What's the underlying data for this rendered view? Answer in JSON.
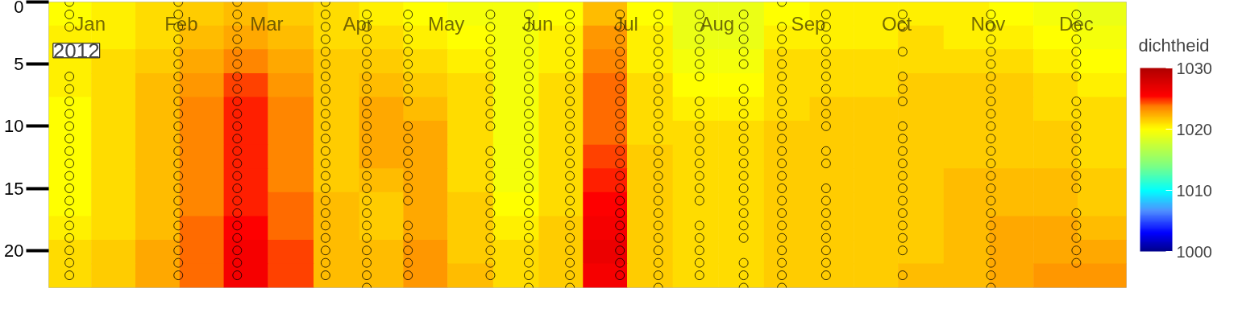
{
  "chart_data": {
    "type": "heatmap",
    "x": [
      "2012-01-08",
      "2012-01-23",
      "2012-02-07",
      "2012-02-22",
      "2012-03-08",
      "2012-03-23",
      "2012-04-08",
      "2012-04-23",
      "2012-05-08",
      "2012-05-23",
      "2012-06-08",
      "2012-06-23",
      "2012-07-08",
      "2012-07-23",
      "2012-08-08",
      "2012-08-23",
      "2012-09-08",
      "2012-09-23",
      "2012-10-08",
      "2012-10-23",
      "2012-11-08",
      "2012-11-23",
      "2012-12-08",
      "2012-12-23"
    ],
    "cells": [
      [
        1020,
        1020.5,
        1021,
        1021.5,
        1022,
        1021.5,
        1021,
        1020.5,
        1020,
        1019.5,
        1019.5,
        1020,
        1022,
        1020,
        1019,
        1019,
        1020,
        1020.5,
        1020.5,
        1020.5,
        1020.5,
        1020,
        1019.5,
        1019
      ],
      [
        1020.5,
        1020.5,
        1021,
        1022,
        1022.5,
        1022,
        1021,
        1021,
        1020.5,
        1020,
        1019.5,
        1020.5,
        1023,
        1020.5,
        1019,
        1019,
        1020.5,
        1020.5,
        1020.5,
        1021,
        1020.5,
        1020.5,
        1020,
        1019.5
      ],
      [
        1020.5,
        1021,
        1021.5,
        1022.5,
        1023.5,
        1022.5,
        1021.5,
        1021.5,
        1021,
        1020.5,
        1019.5,
        1020.5,
        1023.5,
        1020.5,
        1019.5,
        1019.5,
        1021,
        1021,
        1021,
        1021,
        1021,
        1021,
        1020.5,
        1020
      ],
      [
        1020.5,
        1021,
        1022,
        1023,
        1024.5,
        1023,
        1021.5,
        1022,
        1021.5,
        1021,
        1019.5,
        1021,
        1024,
        1021,
        1020,
        1020,
        1021,
        1021,
        1021,
        1021.5,
        1021.5,
        1021.5,
        1021,
        1020.5
      ],
      [
        1020,
        1021,
        1022,
        1023.5,
        1025,
        1023.5,
        1021.5,
        1022.5,
        1022,
        1021,
        1019.5,
        1021,
        1024,
        1021,
        1020.5,
        1020.5,
        1021,
        1021.5,
        1021.5,
        1021.5,
        1021.5,
        1021.5,
        1021,
        1021
      ],
      [
        1020,
        1021,
        1022,
        1023.5,
        1025,
        1023.5,
        1021.5,
        1022.5,
        1022.5,
        1021,
        1019.5,
        1021,
        1024,
        1021,
        1021,
        1021,
        1021.5,
        1021.5,
        1021.5,
        1021.5,
        1021.5,
        1021.5,
        1021.5,
        1021
      ],
      [
        1020,
        1021,
        1022,
        1023.5,
        1025,
        1023.5,
        1021.5,
        1022.5,
        1022.5,
        1021,
        1019.5,
        1021,
        1024.5,
        1021.5,
        1021,
        1021,
        1021.5,
        1021.5,
        1021.5,
        1021.5,
        1021.5,
        1021.5,
        1021.5,
        1021
      ],
      [
        1020,
        1021,
        1022,
        1023.5,
        1025,
        1023.5,
        1021.5,
        1022,
        1022.5,
        1021,
        1019.5,
        1021,
        1025,
        1021.5,
        1021,
        1021,
        1021.5,
        1021.5,
        1021.5,
        1021.5,
        1022,
        1022,
        1022,
        1021.5
      ],
      [
        1020,
        1021,
        1022,
        1023.5,
        1025,
        1024,
        1022,
        1021.5,
        1022.5,
        1021.5,
        1020,
        1021,
        1025.5,
        1021.5,
        1021,
        1021,
        1021.5,
        1021.5,
        1021.5,
        1021.5,
        1022,
        1022,
        1022,
        1021.5
      ],
      [
        1020.5,
        1021,
        1022,
        1024,
        1025.5,
        1024,
        1022,
        1021.5,
        1022.5,
        1021.5,
        1020.5,
        1021.5,
        1026,
        1021.5,
        1021,
        1021,
        1021.5,
        1021.5,
        1021.5,
        1021.5,
        1022,
        1022.5,
        1022.5,
        1022
      ],
      [
        1021,
        1021.5,
        1022.5,
        1024,
        1026,
        1024.5,
        1022,
        1022,
        1023,
        1021.5,
        1021,
        1021.5,
        1026.5,
        1021.5,
        1021,
        1021,
        1021.5,
        1021.5,
        1021.5,
        1021.5,
        1022,
        1022.5,
        1022.5,
        1022.5
      ],
      [
        1021,
        1021.5,
        1022.5,
        1024,
        1026,
        1024.5,
        1022,
        1022,
        1023,
        1022,
        1021,
        1021.5,
        1026,
        1021.5,
        1021,
        1021,
        1021.5,
        1021.5,
        1021.5,
        1022,
        1022,
        1022.5,
        1023,
        1023
      ]
    ],
    "clabel": "dichtheid",
    "clim": [
      1000,
      1030
    ],
    "cticks": [
      1000,
      1010,
      1020,
      1030
    ],
    "xlim": [
      "2012-01-01",
      "2013-01-01"
    ],
    "xticks": [
      {
        "value": "2012-01-15",
        "label": "Jan"
      },
      {
        "value": "2012-02-15",
        "label": "Feb"
      },
      {
        "value": "2012-03-15",
        "label": "Mar"
      },
      {
        "value": "2012-04-15",
        "label": "Apr"
      },
      {
        "value": "2012-05-15",
        "label": "May"
      },
      {
        "value": "2012-06-15",
        "label": "Jun"
      },
      {
        "value": "2012-07-15",
        "label": "Jul"
      },
      {
        "value": "2012-08-15",
        "label": "Aug"
      },
      {
        "value": "2012-09-15",
        "label": "Sep"
      },
      {
        "value": "2012-10-15",
        "label": "Oct"
      },
      {
        "value": "2012-11-15",
        "label": "Nov"
      },
      {
        "value": "2012-12-15",
        "label": "Dec"
      }
    ],
    "ylim": [
      23,
      0
    ],
    "yticks": [
      0,
      5,
      10,
      15,
      20
    ],
    "marker": "circle",
    "annotations": [
      "2012"
    ],
    "series": [
      {
        "type": "scatter",
        "color": "#000000",
        "x": [
          "2012-01-08",
          "2012-01-08",
          "2012-01-08",
          "2012-01-08",
          "2012-01-08",
          "2012-01-08",
          "2012-01-08",
          "2012-01-08",
          "2012-01-08",
          "2012-01-08",
          "2012-01-08",
          "2012-01-08",
          "2012-01-08",
          "2012-01-08",
          "2012-01-08",
          "2012-01-08",
          "2012-01-08",
          "2012-01-08",
          "2012-01-08",
          "2012-01-08"
        ],
        "values": [
          0,
          1,
          2,
          6,
          7,
          8,
          9,
          10,
          11,
          12,
          13,
          14,
          15,
          16,
          17,
          18,
          19,
          20,
          21,
          22
        ]
      },
      {
        "type": "scatter",
        "color": "#000000",
        "x": [
          "2012-02-14",
          "2012-02-14",
          "2012-02-14",
          "2012-02-14",
          "2012-02-14",
          "2012-02-14",
          "2012-02-14",
          "2012-02-14",
          "2012-02-14",
          "2012-02-14",
          "2012-02-14",
          "2012-02-14",
          "2012-02-14",
          "2012-02-14",
          "2012-02-14",
          "2012-02-14",
          "2012-02-14",
          "2012-02-14",
          "2012-02-14",
          "2012-02-14",
          "2012-02-14",
          "2012-02-14",
          "2012-02-14"
        ],
        "values": [
          0,
          1,
          2,
          3,
          4,
          5,
          6,
          7,
          8,
          9,
          10,
          11,
          12,
          13,
          14,
          15,
          16,
          17,
          18,
          19,
          20,
          21,
          22
        ]
      },
      {
        "type": "scatter",
        "color": "#000000",
        "x": [
          "2012-03-05",
          "2012-03-05",
          "2012-03-05",
          "2012-03-05",
          "2012-03-05",
          "2012-03-05",
          "2012-03-05",
          "2012-03-05",
          "2012-03-05",
          "2012-03-05",
          "2012-03-05",
          "2012-03-05",
          "2012-03-05",
          "2012-03-05",
          "2012-03-05",
          "2012-03-05",
          "2012-03-05",
          "2012-03-05",
          "2012-03-05",
          "2012-03-05",
          "2012-03-05",
          "2012-03-05",
          "2012-03-05"
        ],
        "values": [
          0,
          1,
          2,
          3,
          4,
          5,
          6,
          7,
          8,
          9,
          10,
          11,
          12,
          13,
          14,
          15,
          16,
          17,
          18,
          19,
          20,
          21,
          22
        ]
      },
      {
        "type": "scatter",
        "color": "#000000",
        "x": [
          "2012-04-04",
          "2012-04-04",
          "2012-04-04",
          "2012-04-04",
          "2012-04-04",
          "2012-04-04",
          "2012-04-04",
          "2012-04-04",
          "2012-04-04",
          "2012-04-04",
          "2012-04-04",
          "2012-04-04",
          "2012-04-04",
          "2012-04-04",
          "2012-04-04",
          "2012-04-04",
          "2012-04-04",
          "2012-04-04",
          "2012-04-04",
          "2012-04-04",
          "2012-04-04",
          "2012-04-04",
          "2012-04-04"
        ],
        "values": [
          0,
          1,
          2,
          3,
          4,
          5,
          6,
          7,
          8,
          9,
          10,
          11,
          12,
          13,
          14,
          15,
          16,
          17,
          18,
          19,
          20,
          21,
          22
        ]
      },
      {
        "type": "scatter",
        "color": "#000000",
        "x": [
          "2012-04-18",
          "2012-04-18",
          "2012-04-18",
          "2012-04-18",
          "2012-04-18",
          "2012-04-18",
          "2012-04-18",
          "2012-04-18",
          "2012-04-18",
          "2012-04-18",
          "2012-04-18",
          "2012-04-18",
          "2012-04-18",
          "2012-04-18",
          "2012-04-18",
          "2012-04-18",
          "2012-04-18",
          "2012-04-18",
          "2012-04-18",
          "2012-04-18",
          "2012-04-18",
          "2012-04-18",
          "2012-04-18"
        ],
        "values": [
          1,
          2,
          3,
          4,
          5,
          6,
          7,
          8,
          9,
          10,
          11,
          12,
          13,
          14,
          15,
          16,
          17,
          18,
          19,
          20,
          21,
          22,
          23
        ]
      },
      {
        "type": "scatter",
        "color": "#000000",
        "x": [
          "2012-05-02",
          "2012-05-02",
          "2012-05-02",
          "2012-05-02",
          "2012-05-02",
          "2012-05-02",
          "2012-05-02",
          "2012-05-02",
          "2012-05-02",
          "2012-05-02",
          "2012-05-02",
          "2012-05-02",
          "2012-05-02",
          "2012-05-02",
          "2012-05-02",
          "2012-05-02",
          "2012-05-02",
          "2012-05-02",
          "2012-05-02",
          "2012-05-02"
        ],
        "values": [
          1,
          2,
          3,
          4,
          5,
          6,
          7,
          8,
          10,
          11,
          12,
          13,
          14,
          15,
          16,
          18,
          19,
          20,
          21,
          22
        ]
      },
      {
        "type": "scatter",
        "color": "#000000",
        "x": [
          "2012-05-30",
          "2012-05-30",
          "2012-05-30",
          "2012-05-30",
          "2012-05-30",
          "2012-05-30",
          "2012-05-30",
          "2012-05-30",
          "2012-05-30",
          "2012-05-30",
          "2012-05-30",
          "2012-05-30",
          "2012-05-30",
          "2012-05-30",
          "2012-05-30",
          "2012-05-30",
          "2012-05-30",
          "2012-05-30",
          "2012-05-30",
          "2012-05-30",
          "2012-05-30"
        ],
        "values": [
          1,
          2,
          3,
          4,
          5,
          6,
          7,
          8,
          9,
          10,
          12,
          13,
          14,
          15,
          16,
          17,
          18,
          19,
          20,
          21,
          22
        ]
      },
      {
        "type": "scatter",
        "color": "#000000",
        "x": [
          "2012-06-12",
          "2012-06-12",
          "2012-06-12",
          "2012-06-12",
          "2012-06-12",
          "2012-06-12",
          "2012-06-12",
          "2012-06-12",
          "2012-06-12",
          "2012-06-12",
          "2012-06-12",
          "2012-06-12",
          "2012-06-12",
          "2012-06-12",
          "2012-06-12",
          "2012-06-12",
          "2012-06-12",
          "2012-06-12",
          "2012-06-12",
          "2012-06-12",
          "2012-06-12",
          "2012-06-12",
          "2012-06-12"
        ],
        "values": [
          1,
          2,
          3,
          4,
          5,
          6,
          7,
          8,
          9,
          10,
          11,
          12,
          13,
          14,
          15,
          16,
          17,
          18,
          19,
          20,
          21,
          22,
          23
        ]
      },
      {
        "type": "scatter",
        "color": "#000000",
        "x": [
          "2012-06-26",
          "2012-06-26",
          "2012-06-26",
          "2012-06-26",
          "2012-06-26",
          "2012-06-26",
          "2012-06-26",
          "2012-06-26",
          "2012-06-26",
          "2012-06-26",
          "2012-06-26",
          "2012-06-26",
          "2012-06-26",
          "2012-06-26",
          "2012-06-26",
          "2012-06-26",
          "2012-06-26",
          "2012-06-26",
          "2012-06-26",
          "2012-06-26",
          "2012-06-26",
          "2012-06-26",
          "2012-06-26"
        ],
        "values": [
          1,
          2,
          3,
          4,
          5,
          6,
          7,
          8,
          9,
          10,
          11,
          12,
          13,
          14,
          15,
          16,
          17,
          18,
          19,
          20,
          21,
          22,
          23
        ]
      },
      {
        "type": "scatter",
        "color": "#000000",
        "x": [
          "2012-07-13",
          "2012-07-13",
          "2012-07-13",
          "2012-07-13",
          "2012-07-13",
          "2012-07-13",
          "2012-07-13",
          "2012-07-13",
          "2012-07-13",
          "2012-07-13",
          "2012-07-13",
          "2012-07-13",
          "2012-07-13",
          "2012-07-13",
          "2012-07-13",
          "2012-07-13",
          "2012-07-13",
          "2012-07-13",
          "2012-07-13",
          "2012-07-13",
          "2012-07-13",
          "2012-07-13"
        ],
        "values": [
          1,
          2,
          3,
          4,
          5,
          6,
          7,
          8,
          9,
          10,
          11,
          12,
          13,
          14,
          15,
          16,
          17,
          18,
          19,
          20,
          21,
          22
        ]
      },
      {
        "type": "scatter",
        "color": "#000000",
        "x": [
          "2012-07-26",
          "2012-07-26",
          "2012-07-26",
          "2012-07-26",
          "2012-07-26",
          "2012-07-26",
          "2012-07-26",
          "2012-07-26",
          "2012-07-26",
          "2012-07-26",
          "2012-07-26",
          "2012-07-26",
          "2012-07-26",
          "2012-07-26",
          "2012-07-26",
          "2012-07-26",
          "2012-07-26",
          "2012-07-26",
          "2012-07-26",
          "2012-07-26",
          "2012-07-26",
          "2012-07-26",
          "2012-07-26"
        ],
        "values": [
          1,
          2,
          3,
          4,
          5,
          6,
          7,
          8,
          9,
          10,
          11,
          12,
          13,
          14,
          15,
          16,
          17,
          18,
          19,
          20,
          21,
          22,
          23
        ]
      },
      {
        "type": "scatter",
        "color": "#000000",
        "x": [
          "2012-08-09",
          "2012-08-09",
          "2012-08-09",
          "2012-08-09",
          "2012-08-09",
          "2012-08-09",
          "2012-08-09",
          "2012-08-09",
          "2012-08-09",
          "2012-08-09",
          "2012-08-09",
          "2012-08-09",
          "2012-08-09",
          "2012-08-09",
          "2012-08-09",
          "2012-08-09",
          "2012-08-09",
          "2012-08-09",
          "2012-08-09",
          "2012-08-09"
        ],
        "values": [
          1,
          2,
          3,
          4,
          5,
          6,
          8,
          9,
          10,
          11,
          12,
          13,
          14,
          15,
          16,
          18,
          19,
          20,
          21,
          22
        ]
      },
      {
        "type": "scatter",
        "color": "#000000",
        "x": [
          "2012-08-24",
          "2012-08-24",
          "2012-08-24",
          "2012-08-24",
          "2012-08-24",
          "2012-08-24",
          "2012-08-24",
          "2012-08-24",
          "2012-08-24",
          "2012-08-24",
          "2012-08-24",
          "2012-08-24",
          "2012-08-24",
          "2012-08-24",
          "2012-08-24",
          "2012-08-24",
          "2012-08-24",
          "2012-08-24",
          "2012-08-24",
          "2012-08-24",
          "2012-08-24"
        ],
        "values": [
          1,
          2,
          3,
          4,
          5,
          7,
          8,
          9,
          10,
          11,
          12,
          13,
          14,
          15,
          16,
          17,
          18,
          19,
          21,
          22,
          23
        ]
      },
      {
        "type": "scatter",
        "color": "#000000",
        "x": [
          "2012-09-06",
          "2012-09-06",
          "2012-09-06",
          "2012-09-06",
          "2012-09-06",
          "2012-09-06",
          "2012-09-06",
          "2012-09-06",
          "2012-09-06",
          "2012-09-06",
          "2012-09-06",
          "2012-09-06",
          "2012-09-06",
          "2012-09-06",
          "2012-09-06",
          "2012-09-06",
          "2012-09-06",
          "2012-09-06",
          "2012-09-06",
          "2012-09-06",
          "2012-09-06",
          "2012-09-06",
          "2012-09-06"
        ],
        "values": [
          0,
          2,
          3,
          4,
          5,
          6,
          7,
          8,
          9,
          10,
          11,
          12,
          13,
          14,
          15,
          16,
          17,
          18,
          19,
          20,
          21,
          22,
          23
        ]
      },
      {
        "type": "scatter",
        "color": "#000000",
        "x": [
          "2012-09-21",
          "2012-09-21",
          "2012-09-21",
          "2012-09-21",
          "2012-09-21",
          "2012-09-21",
          "2012-09-21",
          "2012-09-21",
          "2012-09-21",
          "2012-09-21",
          "2012-09-21",
          "2012-09-21",
          "2012-09-21",
          "2012-09-21",
          "2012-09-21",
          "2012-09-21",
          "2012-09-21",
          "2012-09-21",
          "2012-09-21",
          "2012-09-21"
        ],
        "values": [
          1,
          2,
          3,
          4,
          5,
          6,
          7,
          8,
          9,
          10,
          12,
          13,
          15,
          16,
          17,
          18,
          19,
          20,
          21,
          22
        ]
      },
      {
        "type": "scatter",
        "color": "#000000",
        "x": [
          "2012-10-17",
          "2012-10-17",
          "2012-10-17",
          "2012-10-17",
          "2012-10-17",
          "2012-10-17",
          "2012-10-17",
          "2012-10-17",
          "2012-10-17",
          "2012-10-17",
          "2012-10-17",
          "2012-10-17",
          "2012-10-17",
          "2012-10-17",
          "2012-10-17",
          "2012-10-17",
          "2012-10-17",
          "2012-10-17"
        ],
        "values": [
          1,
          2,
          4,
          6,
          7,
          8,
          10,
          11,
          12,
          13,
          14,
          15,
          16,
          17,
          18,
          19,
          20,
          22
        ]
      },
      {
        "type": "scatter",
        "color": "#000000",
        "x": [
          "2012-11-16",
          "2012-11-16",
          "2012-11-16",
          "2012-11-16",
          "2012-11-16",
          "2012-11-16",
          "2012-11-16",
          "2012-11-16",
          "2012-11-16",
          "2012-11-16",
          "2012-11-16",
          "2012-11-16",
          "2012-11-16",
          "2012-11-16",
          "2012-11-16",
          "2012-11-16",
          "2012-11-16",
          "2012-11-16",
          "2012-11-16",
          "2012-11-16",
          "2012-11-16",
          "2012-11-16",
          "2012-11-16"
        ],
        "values": [
          1,
          2,
          3,
          4,
          5,
          6,
          7,
          8,
          9,
          10,
          11,
          12,
          13,
          14,
          15,
          16,
          17,
          18,
          19,
          20,
          21,
          22,
          23
        ]
      },
      {
        "type": "scatter",
        "color": "#000000",
        "x": [
          "2012-12-15",
          "2012-12-15",
          "2012-12-15",
          "2012-12-15",
          "2012-12-15",
          "2012-12-15",
          "2012-12-15",
          "2012-12-15",
          "2012-12-15",
          "2012-12-15",
          "2012-12-15",
          "2012-12-15",
          "2012-12-15",
          "2012-12-15",
          "2012-12-15",
          "2012-12-15",
          "2012-12-15",
          "2012-12-15",
          "2012-12-15"
        ],
        "values": [
          1,
          2,
          3,
          4,
          5,
          6,
          8,
          9,
          10,
          11,
          12,
          13,
          14,
          15,
          17,
          18,
          19,
          20,
          21
        ]
      }
    ]
  }
}
